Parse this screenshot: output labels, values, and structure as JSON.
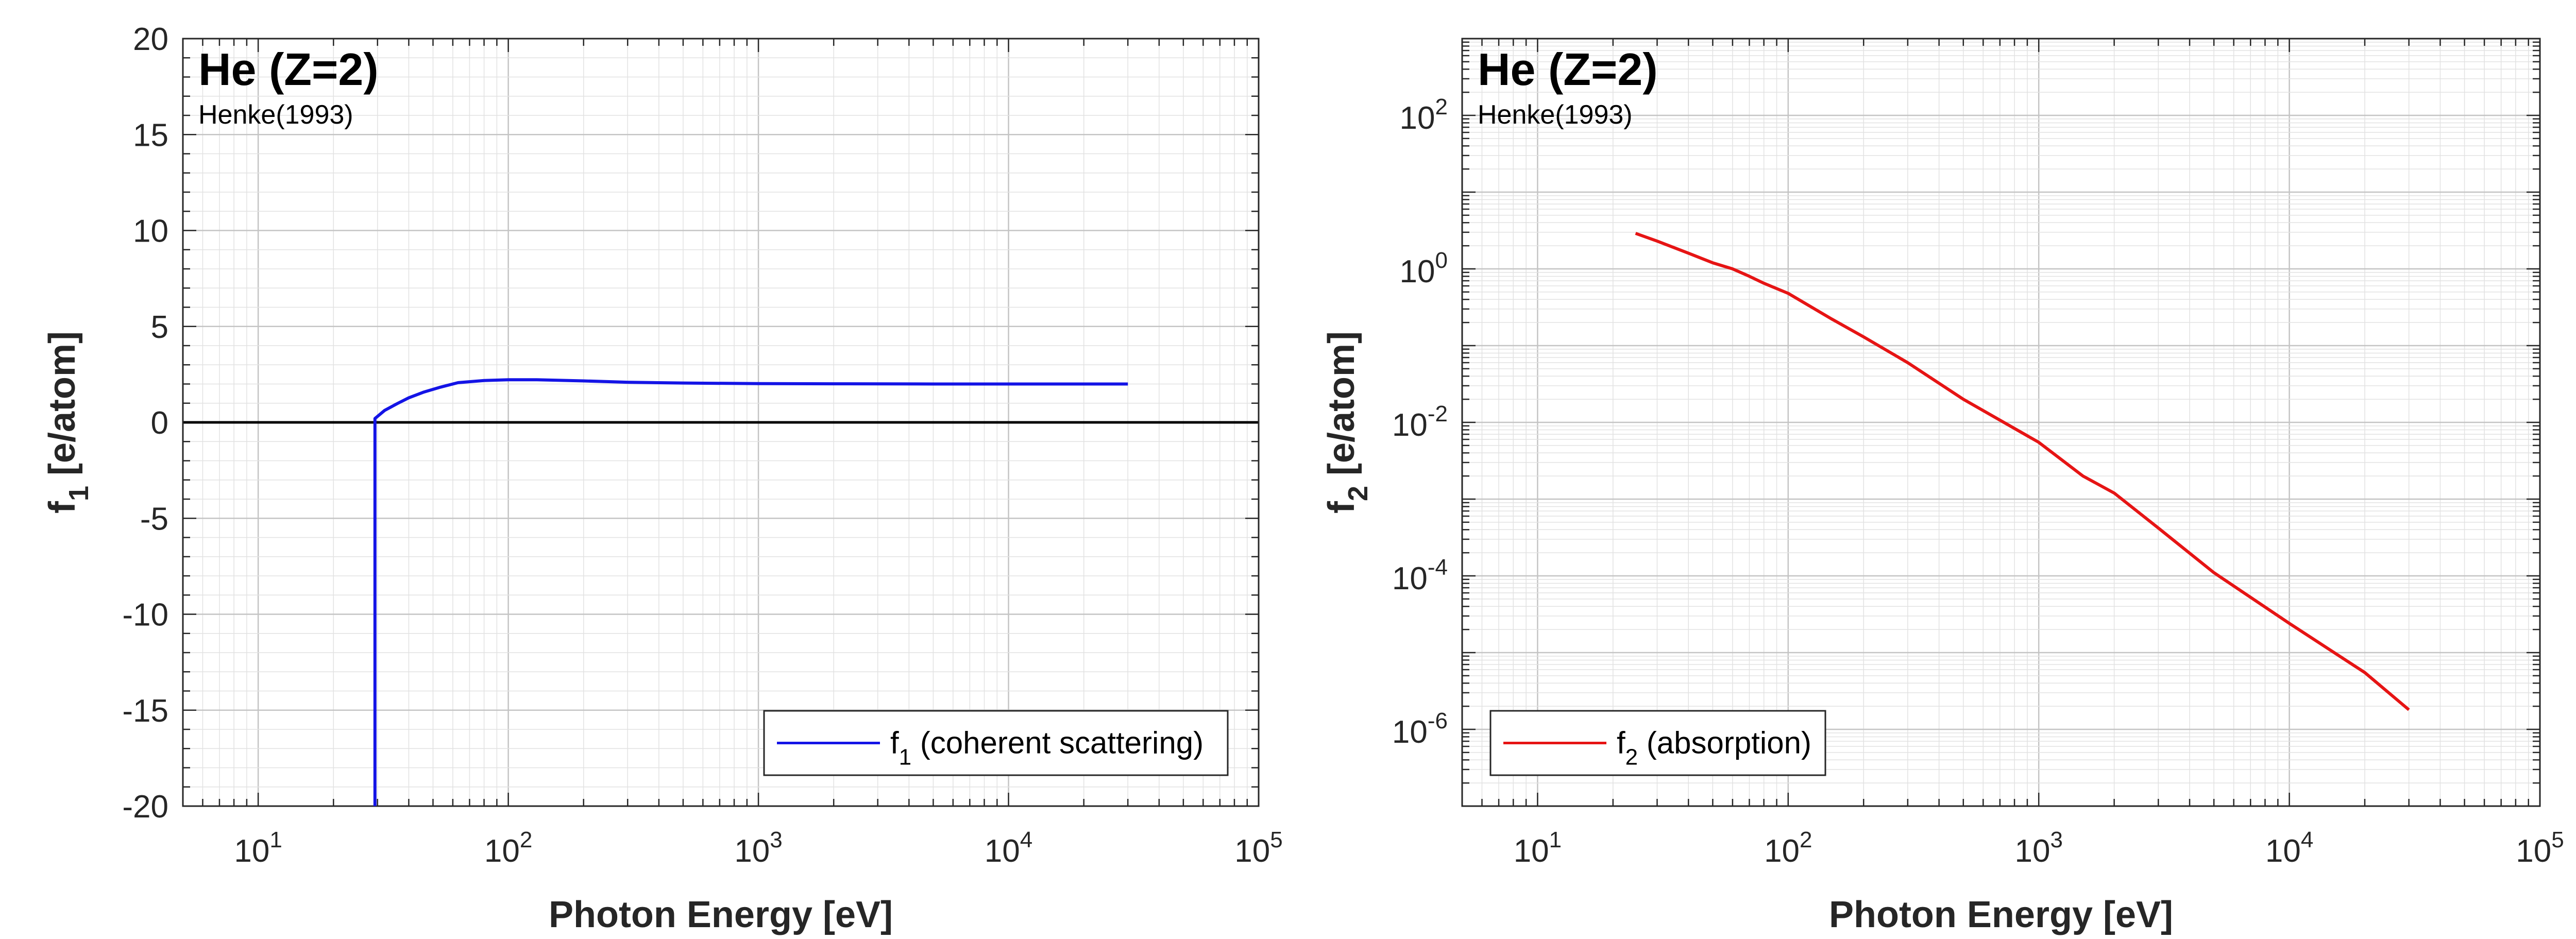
{
  "chart_data": [
    {
      "type": "line",
      "title": "He (Z=2)",
      "subtitle": "Henke(1993)",
      "xlabel": "Photon Energy [eV]",
      "ylabel": {
        "base": "f",
        "sub": "1",
        "rest": " [e/atom]"
      },
      "xscale": "log",
      "yscale": "linear",
      "xlim": [
        5,
        100000
      ],
      "ylim": [
        -20,
        20
      ],
      "grid": true,
      "legend_position": "bottom-right",
      "x_ticks": [
        {
          "base": "10",
          "exp": "1"
        },
        {
          "base": "10",
          "exp": "2"
        },
        {
          "base": "10",
          "exp": "3"
        },
        {
          "base": "10",
          "exp": "4"
        },
        {
          "base": "10",
          "exp": "5"
        }
      ],
      "y_ticks": [
        "-20",
        "-15",
        "-10",
        "-5",
        "0",
        "5",
        "10",
        "15",
        "20"
      ],
      "colors": {
        "series": "#1414e6",
        "zero_line": "#000000"
      },
      "series": [
        {
          "name": {
            "base": "f",
            "sub": "1",
            "rest": " (coherent scattering)"
          },
          "x": [
            29.3,
            29.3,
            32,
            36,
            40,
            46,
            53,
            63,
            80,
            100,
            130,
            200,
            300,
            500,
            1000,
            2000,
            5000,
            10000,
            30000
          ],
          "y": [
            -20,
            0.2,
            0.62,
            0.98,
            1.28,
            1.58,
            1.82,
            2.07,
            2.18,
            2.22,
            2.22,
            2.16,
            2.09,
            2.05,
            2.02,
            2.01,
            2.0,
            2.0,
            2.0
          ]
        }
      ]
    },
    {
      "type": "line",
      "title": "He (Z=2)",
      "subtitle": "Henke(1993)",
      "xlabel": "Photon Energy [eV]",
      "ylabel": {
        "base": "f",
        "sub": "2",
        "rest": " [e/atom]"
      },
      "xscale": "log",
      "yscale": "log",
      "xlim": [
        5,
        100000
      ],
      "ylim": [
        1e-07,
        1000
      ],
      "grid": true,
      "legend_position": "bottom-left",
      "x_ticks": [
        {
          "base": "10",
          "exp": "1"
        },
        {
          "base": "10",
          "exp": "2"
        },
        {
          "base": "10",
          "exp": "3"
        },
        {
          "base": "10",
          "exp": "4"
        },
        {
          "base": "10",
          "exp": "5"
        }
      ],
      "y_ticks": [
        {
          "base": "10",
          "exp": "-6"
        },
        {
          "base": "10",
          "exp": "-4"
        },
        {
          "base": "10",
          "exp": "-2"
        },
        {
          "base": "10",
          "exp": "0"
        },
        {
          "base": "10",
          "exp": "2"
        }
      ],
      "colors": {
        "series": "#e61414"
      },
      "series": [
        {
          "name": {
            "base": "f",
            "sub": "2",
            "rest": " (absorption)"
          },
          "x": [
            24.6,
            30,
            40,
            50,
            60,
            70,
            80,
            100,
            150,
            200,
            300,
            500,
            1000,
            1500,
            2000,
            3000,
            5000,
            10000,
            20000,
            30000
          ],
          "y": [
            2.9,
            2.3,
            1.6,
            1.2,
            1.0,
            0.8,
            0.65,
            0.48,
            0.22,
            0.13,
            0.06,
            0.02,
            0.0055,
            0.002,
            0.0012,
            0.00042,
            0.00011,
            2.4e-05,
            5.5e-06,
            1.8e-06
          ]
        }
      ]
    }
  ]
}
